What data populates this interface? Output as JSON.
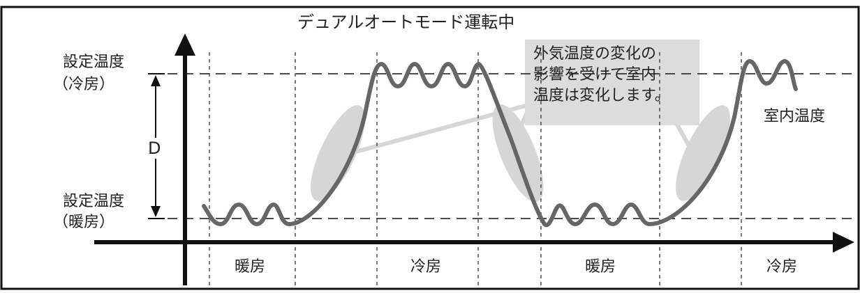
{
  "title": "デュアルオートモード運転中",
  "upper_setpoint": {
    "line1": "設定温度",
    "line2": "（冷房）"
  },
  "lower_setpoint": {
    "line1": "設定温度",
    "line2": "（暖房）"
  },
  "band_label": "D",
  "curve_label": "室内温度",
  "callout": {
    "line1": "外気温度の変化の",
    "line2": "影響を受けて室内",
    "line3": "温度は変化します。"
  },
  "modes": [
    "暖房",
    "冷房",
    "暖房",
    "冷房"
  ],
  "colors": {
    "curve": "#666666",
    "callout_bg": "#dcdcdc",
    "ellipse": "#d6d6d6",
    "axis": "#111111"
  }
}
